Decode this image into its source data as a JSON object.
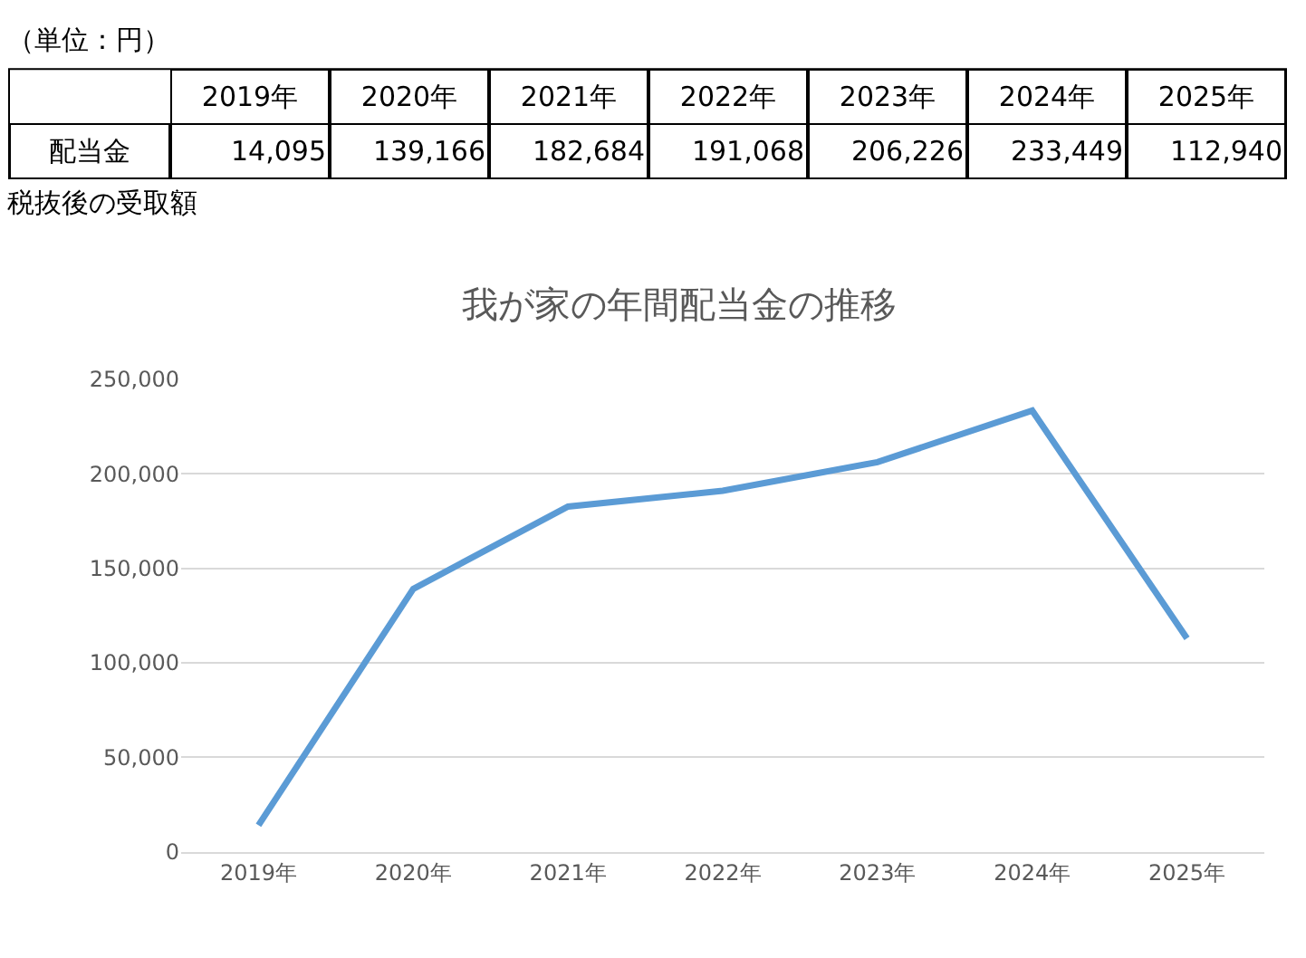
{
  "chart_data": {
    "type": "line",
    "title": "我が家の年間配当金の推移",
    "categories": [
      "2019年",
      "2020年",
      "2021年",
      "2022年",
      "2023年",
      "2024年",
      "2025年"
    ],
    "series": [
      {
        "name": "配当金",
        "color": "#5b9bd5",
        "values": [
          14095,
          139166,
          182684,
          191068,
          206226,
          233449,
          112940
        ],
        "value_labels": [
          "14,095",
          "139,166",
          "182,684",
          "191,068",
          "206,226",
          "233,449",
          "112,940"
        ]
      }
    ],
    "ylim": [
      0,
      250000
    ],
    "yticks": [
      {
        "value": 0,
        "label": "0"
      },
      {
        "value": 50000,
        "label": "50,000"
      },
      {
        "value": 100000,
        "label": "100,000"
      },
      {
        "value": 150000,
        "label": "150,000"
      },
      {
        "value": 200000,
        "label": "200,000"
      },
      {
        "value": 250000,
        "label": "250,000"
      }
    ],
    "grid": "y",
    "legend": false,
    "marker": "none",
    "line_style": "solid",
    "annotations": [
      "（単位：円）",
      "税抜後の受取額"
    ]
  }
}
